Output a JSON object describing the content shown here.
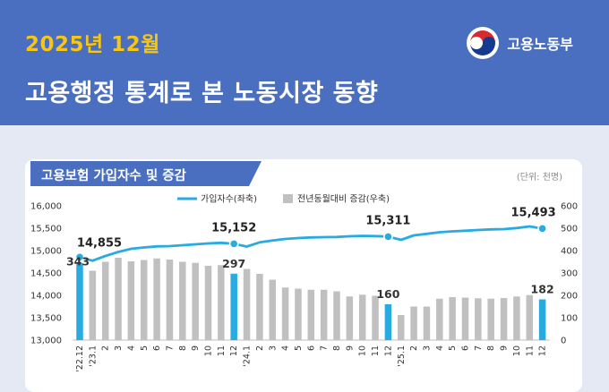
{
  "header": {
    "date": "2025년 12월",
    "title": "고용행정 통계로 본 노동시장 동향",
    "ministry": "고용노동부"
  },
  "card": {
    "title": "고용보험 가입자수 및 증감",
    "unit": "(단위: 천명)"
  },
  "colors": {
    "header_bg": "#4a6fc0",
    "title_tab": "#4a6fc0",
    "line": "#29abe2",
    "bar_gray": "#c0c0c0",
    "bar_highlight": "#29abe2",
    "date_text": "#f5c518"
  },
  "chart_data": {
    "type": "bar+line",
    "categories": [
      "'22.12",
      "'23.1",
      "2",
      "3",
      "4",
      "5",
      "6",
      "7",
      "8",
      "9",
      "10",
      "11",
      "12",
      "'24.1",
      "2",
      "3",
      "4",
      "5",
      "6",
      "7",
      "8",
      "9",
      "10",
      "11",
      "12",
      "'25.1",
      "2",
      "3",
      "4",
      "5",
      "6",
      "7",
      "8",
      "9",
      "10",
      "11",
      "12"
    ],
    "series": [
      {
        "name": "가입자수(좌축)",
        "axis": "left",
        "kind": "line",
        "values": [
          14855,
          14775,
          14880,
          14970,
          15040,
          15070,
          15095,
          15100,
          15120,
          15140,
          15160,
          15175,
          15152,
          15090,
          15185,
          15225,
          15260,
          15280,
          15295,
          15300,
          15305,
          15320,
          15330,
          15325,
          15311,
          15240,
          15340,
          15375,
          15410,
          15430,
          15445,
          15460,
          15475,
          15480,
          15505,
          15540,
          15493
        ]
      },
      {
        "name": "전년동월대비 증감(우축)",
        "axis": "right",
        "kind": "bar",
        "values": [
          343,
          310,
          350,
          368,
          352,
          358,
          365,
          360,
          350,
          345,
          332,
          335,
          297,
          318,
          296,
          270,
          235,
          230,
          225,
          225,
          218,
          195,
          203,
          198,
          160,
          112,
          150,
          150,
          185,
          192,
          190,
          187,
          185,
          188,
          195,
          201,
          182
        ]
      }
    ],
    "highlight_indices": [
      0,
      12,
      24,
      36
    ],
    "line_labels": [
      "14,855",
      "15,152",
      "15,311",
      "15,493"
    ],
    "bar_labels": [
      "343",
      "297",
      "160",
      "182"
    ],
    "left_axis": {
      "ticks": [
        "13,000",
        "13,500",
        "14,000",
        "14,500",
        "15,000",
        "15,500",
        "16,000"
      ],
      "range": [
        13000,
        16000
      ]
    },
    "right_axis": {
      "ticks": [
        "0",
        "100",
        "200",
        "300",
        "400",
        "500",
        "600"
      ],
      "range": [
        0,
        600
      ]
    },
    "legend": [
      "가입자수(좌축)",
      "전년동월대비 증감(우축)"
    ],
    "legend_position": "top",
    "grid": false
  }
}
